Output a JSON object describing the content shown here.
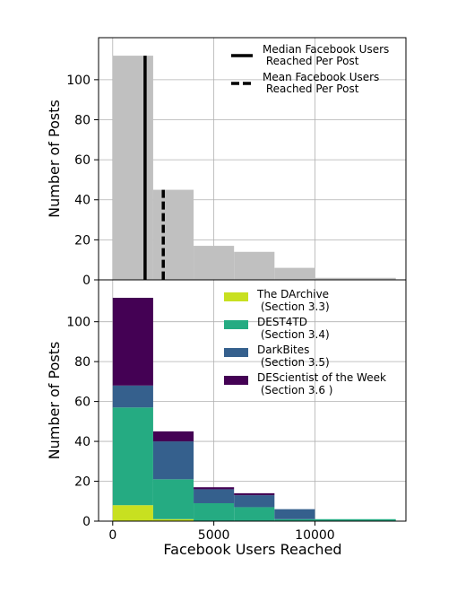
{
  "chart_data": [
    {
      "type": "histogram",
      "panel": "top",
      "ylabel": "Number of Posts",
      "xlim": [
        -700,
        14500
      ],
      "ylim": [
        0,
        121
      ],
      "yticks": [
        0,
        20,
        40,
        60,
        80,
        100
      ],
      "xgrid": [
        0,
        5000,
        10000
      ],
      "grid": true,
      "bin_edges": [
        0,
        2000,
        4000,
        6000,
        8000,
        10000,
        14000
      ],
      "counts": [
        112,
        45,
        17,
        14,
        6,
        1
      ],
      "bar_color": "#c0c0c0",
      "lines": [
        {
          "name": "Median Facebook Users\n Reached Per Post",
          "x": 1600,
          "style": "solid"
        },
        {
          "name": "Mean Facebook Users\n Reached Per Post",
          "x": 2500,
          "style": "dashed"
        }
      ],
      "legend_location": "top-right"
    },
    {
      "type": "stacked-histogram",
      "panel": "bottom",
      "xlabel": "Facebook Users Reached",
      "ylabel": "Number of Posts",
      "xlim": [
        -700,
        14500
      ],
      "ylim": [
        0,
        121
      ],
      "yticks": [
        0,
        20,
        40,
        60,
        80,
        100
      ],
      "xticks": [
        0,
        5000,
        10000
      ],
      "grid": true,
      "bin_edges": [
        0,
        2000,
        4000,
        6000,
        8000,
        10000,
        14000
      ],
      "series": [
        {
          "name": "The DArchive\n (Section 3.3)",
          "color": "#c8e020",
          "values": [
            8,
            1,
            0,
            0,
            0,
            0
          ]
        },
        {
          "name": "DEST4TD\n (Section 3.4)",
          "color": "#25ab82",
          "values": [
            49,
            20,
            9,
            7,
            1,
            1
          ]
        },
        {
          "name": "DarkBites\n (Section 3.5)",
          "color": "#35608d",
          "values": [
            11,
            19,
            7,
            6,
            5,
            0
          ]
        },
        {
          "name": "DEScientist of the Week\n (Section 3.6 )",
          "color": "#440154",
          "values": [
            44,
            5,
            1,
            1,
            0,
            0
          ]
        }
      ],
      "legend_location": "top-right"
    }
  ]
}
